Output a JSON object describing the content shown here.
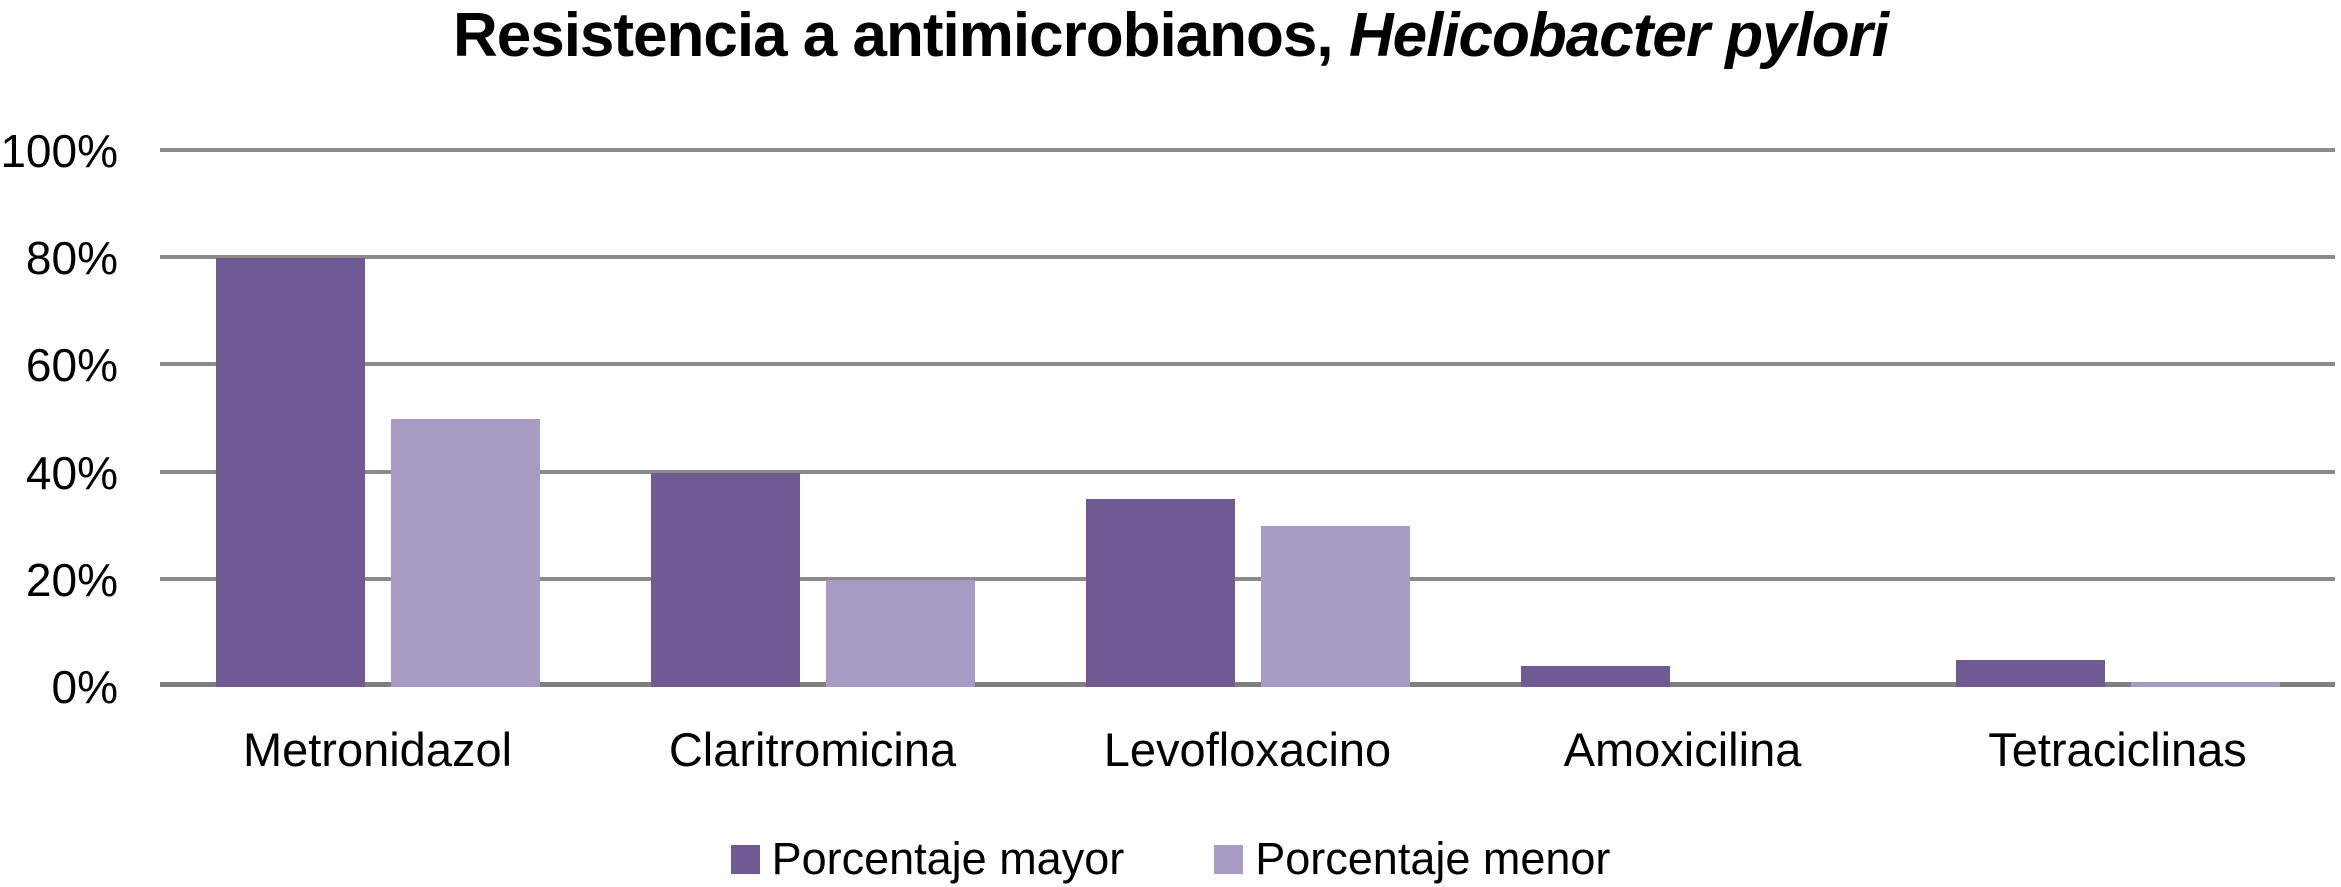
{
  "title": {
    "main": "Resistencia a antimicrobianos, ",
    "italic": "Helicobacter pylori"
  },
  "chart_data": {
    "type": "bar",
    "title": "Resistencia a antimicrobianos, Helicobacter pylori",
    "categories": [
      "Metronidazol",
      "Claritromicina",
      "Levofloxacino",
      "Amoxicilina",
      "Tetraciclinas"
    ],
    "series": [
      {
        "name": "Porcentaje mayor",
        "color": "#6F5A94",
        "values": [
          80,
          40,
          35,
          4,
          5
        ]
      },
      {
        "name": "Porcentaje menor",
        "color": "#A89BC4",
        "values": [
          50,
          20,
          30,
          0,
          1
        ]
      }
    ],
    "xlabel": "",
    "ylabel": "",
    "ylim": [
      0,
      100
    ],
    "ytick_step": 20,
    "ytick_labels": [
      "0%",
      "20%",
      "40%",
      "60%",
      "80%",
      "100%"
    ],
    "grid": true,
    "gridline_color": "#8B8B8B",
    "axis_line_color": "#7F7F7F",
    "legend_position": "bottom",
    "background_color": "#FFFFFF",
    "value_format": "percent"
  }
}
